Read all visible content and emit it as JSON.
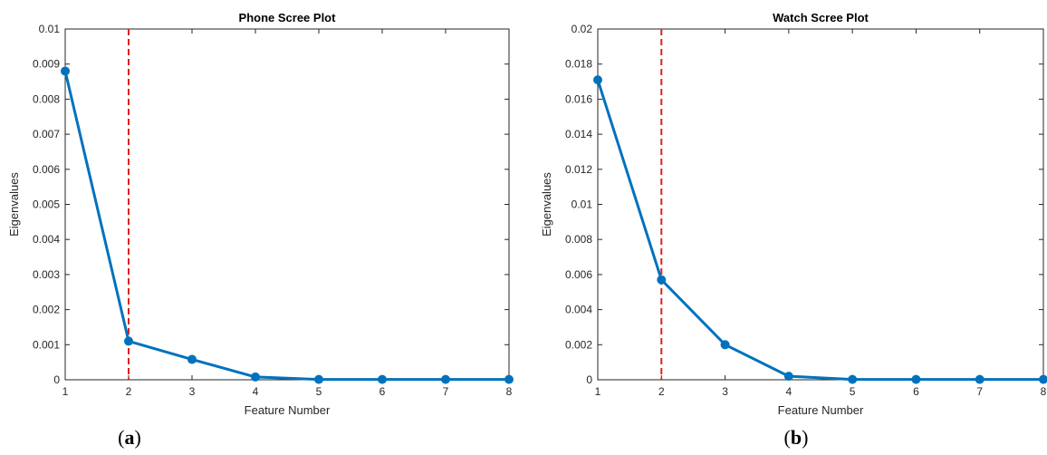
{
  "chart_data": [
    {
      "type": "line",
      "title": "Phone Scree Plot",
      "xlabel": "Feature Number",
      "ylabel": "Eigenvalues",
      "panel_label_open": "(",
      "panel_label_letter": "a",
      "panel_label_close": ")",
      "xlim": [
        1,
        8
      ],
      "ylim": [
        0,
        0.01
      ],
      "x_ticks": [
        "1",
        "2",
        "3",
        "4",
        "5",
        "6",
        "7",
        "8"
      ],
      "y_ticks": [
        "0",
        "0.001",
        "0.002",
        "0.003",
        "0.004",
        "0.005",
        "0.006",
        "0.007",
        "0.008",
        "0.009",
        "0.01"
      ],
      "cutoff_x": 2,
      "series": [
        {
          "x": [
            1,
            2,
            3,
            4,
            5,
            6,
            7,
            8
          ],
          "values": [
            0.0088,
            0.0011,
            0.00058,
            8e-05,
            1e-05,
            1e-05,
            1e-05,
            1e-05
          ]
        }
      ]
    },
    {
      "type": "line",
      "title": "Watch Scree Plot",
      "xlabel": "Feature Number",
      "ylabel": "Eigenvalues",
      "panel_label_open": "(",
      "panel_label_letter": "b",
      "panel_label_close": ")",
      "xlim": [
        1,
        8
      ],
      "ylim": [
        0,
        0.02
      ],
      "x_ticks": [
        "1",
        "2",
        "3",
        "4",
        "5",
        "6",
        "7",
        "8"
      ],
      "y_ticks": [
        "0",
        "0.002",
        "0.004",
        "0.006",
        "0.008",
        "0.01",
        "0.012",
        "0.014",
        "0.016",
        "0.018",
        "0.02"
      ],
      "cutoff_x": 2,
      "series": [
        {
          "x": [
            1,
            2,
            3,
            4,
            5,
            6,
            7,
            8
          ],
          "values": [
            0.0171,
            0.0057,
            0.002,
            0.0002,
            2e-05,
            2e-05,
            2e-05,
            2e-05
          ]
        }
      ]
    }
  ],
  "colors": {
    "line": "#0072BD",
    "cutoff": "#E02020",
    "axis": "#262626",
    "grid": "none"
  }
}
